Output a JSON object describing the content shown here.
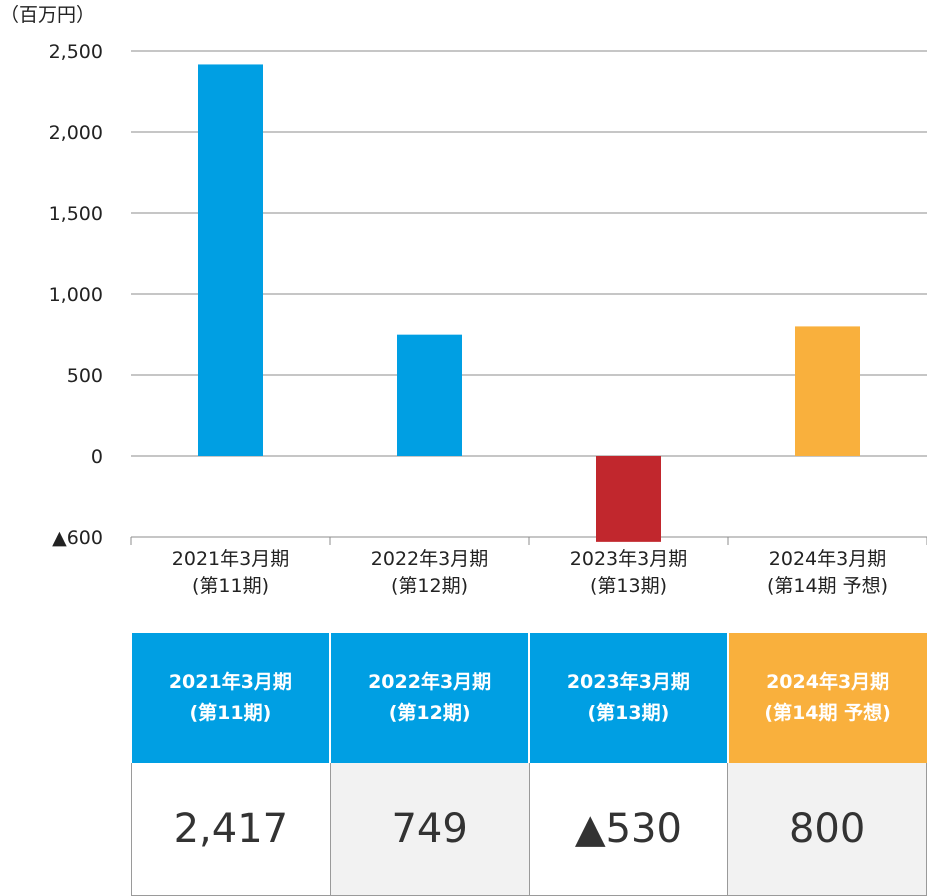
{
  "chart_data": {
    "type": "bar",
    "unit_label": "（百万円）",
    "categories": [
      [
        "2021年3月期",
        "(第11期)"
      ],
      [
        "2022年3月期",
        "(第12期)"
      ],
      [
        "2023年3月期",
        "(第13期)"
      ],
      [
        "2024年3月期",
        "(第14期 予想)"
      ]
    ],
    "values": [
      2417,
      749,
      -530,
      800
    ],
    "ylim": [
      -600,
      2500
    ],
    "y_ticks": [
      2500,
      2000,
      1500,
      1000,
      500,
      0,
      -600
    ],
    "y_tick_labels": [
      "2,500",
      "2,000",
      "1,500",
      "1,000",
      "500",
      "0",
      "▲600"
    ],
    "grid": true,
    "colors": [
      "#009fe3",
      "#009fe3",
      "#c1272d",
      "#f9b03d"
    ]
  },
  "table": {
    "headers": [
      [
        "2021年3月期",
        "(第11期)"
      ],
      [
        "2022年3月期",
        "(第12期)"
      ],
      [
        "2023年3月期",
        "(第13期)"
      ],
      [
        "2024年3月期",
        "(第14期 予想)"
      ]
    ],
    "values": [
      "2,417",
      "749",
      "▲530",
      "800"
    ],
    "header_colors": [
      "#009fe3",
      "#009fe3",
      "#009fe3",
      "#f9b03d"
    ]
  }
}
